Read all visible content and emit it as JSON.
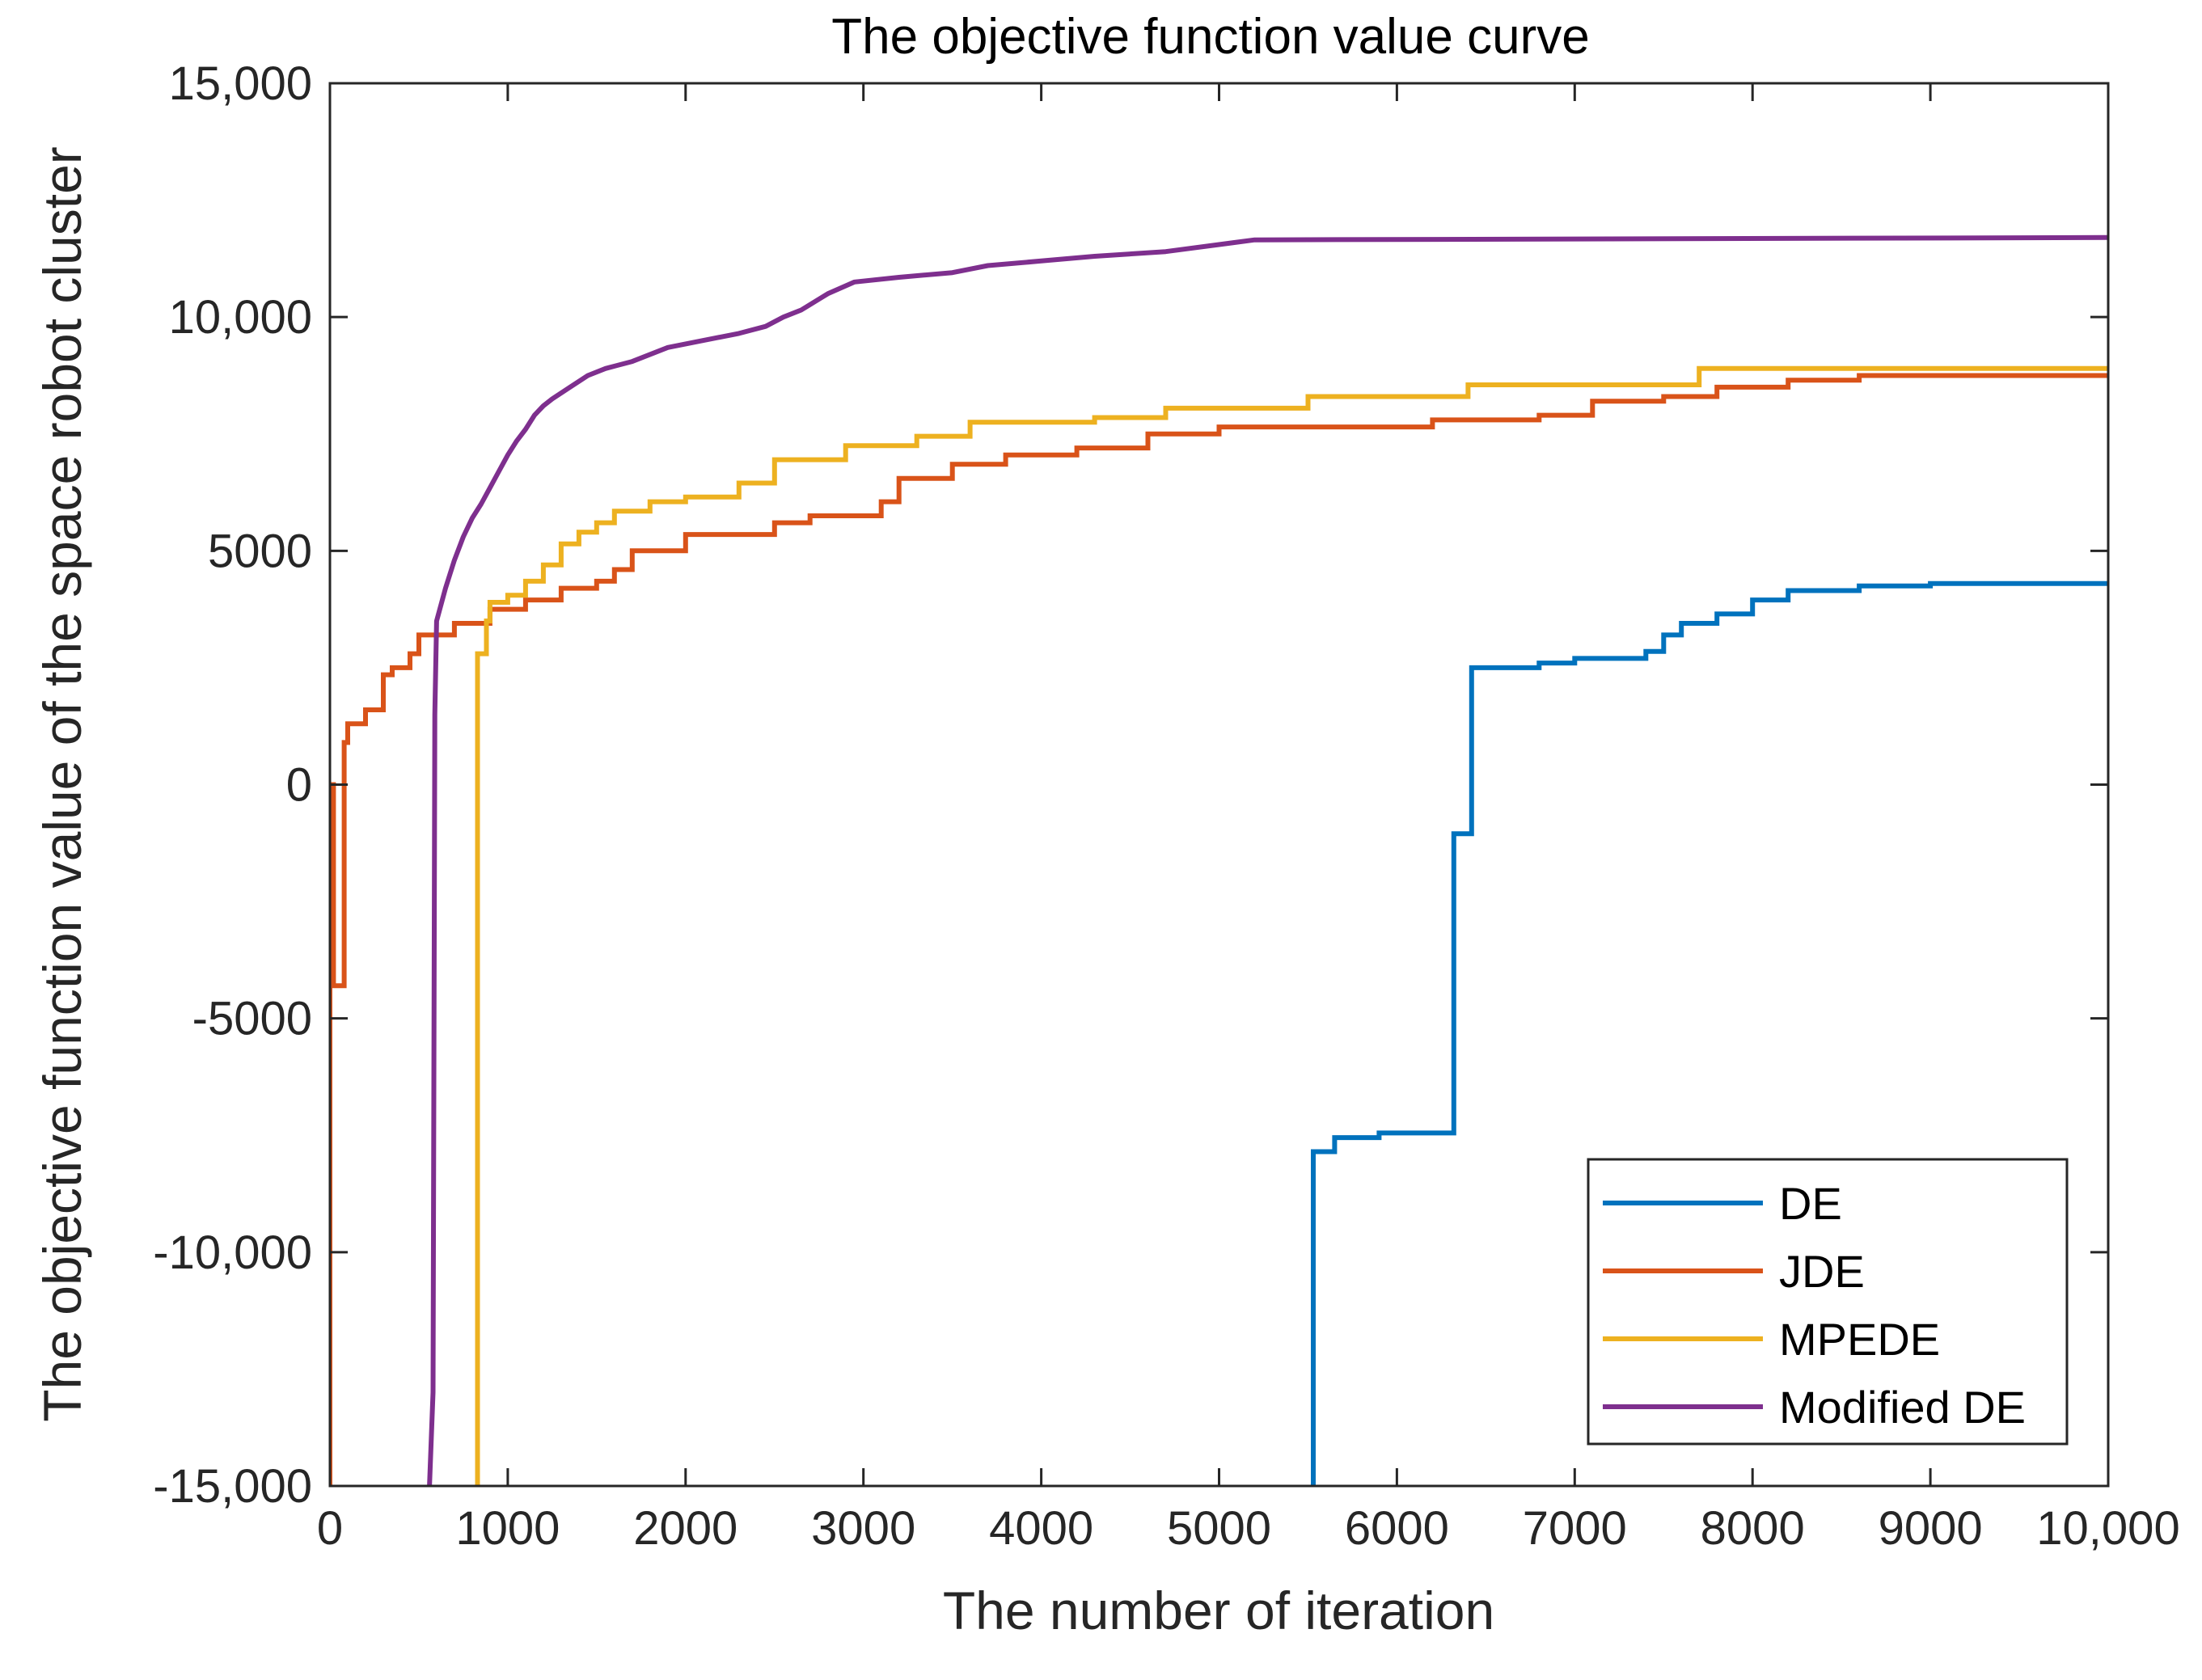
{
  "chart_data": {
    "type": "line",
    "title": "The objective function value curve",
    "xlabel": "The number of iteration",
    "ylabel": "The objective function value of the space robot cluster",
    "xlim": [
      0,
      10000
    ],
    "ylim": [
      -15000,
      15000
    ],
    "xticks": [
      0,
      1000,
      2000,
      3000,
      4000,
      5000,
      6000,
      7000,
      8000,
      9000,
      10000
    ],
    "xtick_labels": [
      "0",
      "1000",
      "2000",
      "3000",
      "4000",
      "5000",
      "6000",
      "7000",
      "8000",
      "9000",
      "10,000"
    ],
    "yticks": [
      15000,
      10000,
      5000,
      0,
      -5000,
      -10000,
      -15000
    ],
    "ytick_labels": [
      "15,000",
      "10,000",
      "5000",
      "0",
      "-5000",
      "-10,000",
      "-15,000"
    ],
    "grid": false,
    "legend_position": "bottom-right",
    "series": [
      {
        "name": "DE",
        "color": "#0072BD",
        "step": true,
        "points": [
          [
            5530,
            -15000
          ],
          [
            5530,
            -7850
          ],
          [
            5650,
            -7850
          ],
          [
            5650,
            -7550
          ],
          [
            5900,
            -7550
          ],
          [
            5900,
            -7450
          ],
          [
            6320,
            -7450
          ],
          [
            6320,
            -1050
          ],
          [
            6420,
            -1050
          ],
          [
            6420,
            2500
          ],
          [
            6800,
            2500
          ],
          [
            6800,
            2600
          ],
          [
            7000,
            2600
          ],
          [
            7000,
            2700
          ],
          [
            7400,
            2700
          ],
          [
            7400,
            2850
          ],
          [
            7500,
            2850
          ],
          [
            7500,
            3200
          ],
          [
            7600,
            3200
          ],
          [
            7600,
            3450
          ],
          [
            7800,
            3450
          ],
          [
            7800,
            3650
          ],
          [
            8000,
            3650
          ],
          [
            8000,
            3950
          ],
          [
            8200,
            3950
          ],
          [
            8200,
            4150
          ],
          [
            8600,
            4150
          ],
          [
            8600,
            4250
          ],
          [
            9000,
            4250
          ],
          [
            9000,
            4300
          ],
          [
            10000,
            4300
          ]
        ]
      },
      {
        "name": "JDE",
        "color": "#D95319",
        "step": true,
        "points": [
          [
            0,
            -15000
          ],
          [
            0,
            0
          ],
          [
            20,
            0
          ],
          [
            20,
            -4300
          ],
          [
            80,
            -4300
          ],
          [
            80,
            900
          ],
          [
            100,
            900
          ],
          [
            100,
            1300
          ],
          [
            200,
            1300
          ],
          [
            200,
            1600
          ],
          [
            300,
            1600
          ],
          [
            300,
            2350
          ],
          [
            350,
            2350
          ],
          [
            350,
            2500
          ],
          [
            450,
            2500
          ],
          [
            450,
            2800
          ],
          [
            500,
            2800
          ],
          [
            500,
            3200
          ],
          [
            700,
            3200
          ],
          [
            700,
            3450
          ],
          [
            900,
            3450
          ],
          [
            900,
            3750
          ],
          [
            1100,
            3750
          ],
          [
            1100,
            3950
          ],
          [
            1300,
            3950
          ],
          [
            1300,
            4200
          ],
          [
            1500,
            4200
          ],
          [
            1500,
            4350
          ],
          [
            1600,
            4350
          ],
          [
            1600,
            4600
          ],
          [
            1700,
            4600
          ],
          [
            1700,
            5000
          ],
          [
            2000,
            5000
          ],
          [
            2000,
            5350
          ],
          [
            2500,
            5350
          ],
          [
            2500,
            5600
          ],
          [
            2700,
            5600
          ],
          [
            2700,
            5750
          ],
          [
            3100,
            5750
          ],
          [
            3100,
            6050
          ],
          [
            3200,
            6050
          ],
          [
            3200,
            6550
          ],
          [
            3500,
            6550
          ],
          [
            3500,
            6850
          ],
          [
            3800,
            6850
          ],
          [
            3800,
            7050
          ],
          [
            4200,
            7050
          ],
          [
            4200,
            7200
          ],
          [
            4600,
            7200
          ],
          [
            4600,
            7500
          ],
          [
            5000,
            7500
          ],
          [
            5000,
            7650
          ],
          [
            6200,
            7650
          ],
          [
            6200,
            7800
          ],
          [
            6800,
            7800
          ],
          [
            6800,
            7900
          ],
          [
            7100,
            7900
          ],
          [
            7100,
            8200
          ],
          [
            7500,
            8200
          ],
          [
            7500,
            8300
          ],
          [
            7800,
            8300
          ],
          [
            7800,
            8500
          ],
          [
            8200,
            8500
          ],
          [
            8200,
            8650
          ],
          [
            8600,
            8650
          ],
          [
            8600,
            8750
          ],
          [
            10000,
            8750
          ]
        ]
      },
      {
        "name": "MPEDE",
        "color": "#EDB120",
        "step": true,
        "points": [
          [
            830,
            -15000
          ],
          [
            830,
            2800
          ],
          [
            880,
            2800
          ],
          [
            880,
            3500
          ],
          [
            900,
            3500
          ],
          [
            900,
            3900
          ],
          [
            1000,
            3900
          ],
          [
            1000,
            4050
          ],
          [
            1100,
            4050
          ],
          [
            1100,
            4350
          ],
          [
            1200,
            4350
          ],
          [
            1200,
            4700
          ],
          [
            1300,
            4700
          ],
          [
            1300,
            5150
          ],
          [
            1400,
            5150
          ],
          [
            1400,
            5400
          ],
          [
            1500,
            5400
          ],
          [
            1500,
            5600
          ],
          [
            1600,
            5600
          ],
          [
            1600,
            5850
          ],
          [
            1800,
            5850
          ],
          [
            1800,
            6050
          ],
          [
            2000,
            6050
          ],
          [
            2000,
            6150
          ],
          [
            2300,
            6150
          ],
          [
            2300,
            6450
          ],
          [
            2500,
            6450
          ],
          [
            2500,
            6950
          ],
          [
            2900,
            6950
          ],
          [
            2900,
            7250
          ],
          [
            3300,
            7250
          ],
          [
            3300,
            7450
          ],
          [
            3600,
            7450
          ],
          [
            3600,
            7750
          ],
          [
            4300,
            7750
          ],
          [
            4300,
            7850
          ],
          [
            4700,
            7850
          ],
          [
            4700,
            8050
          ],
          [
            5500,
            8050
          ],
          [
            5500,
            8300
          ],
          [
            6400,
            8300
          ],
          [
            6400,
            8550
          ],
          [
            7700,
            8550
          ],
          [
            7700,
            8900
          ],
          [
            10000,
            8900
          ]
        ]
      },
      {
        "name": "Modified DE",
        "color": "#7E2F8E",
        "step": false,
        "points": [
          [
            560,
            -15000
          ],
          [
            580,
            -13000
          ],
          [
            590,
            1500
          ],
          [
            600,
            3500
          ],
          [
            650,
            4200
          ],
          [
            700,
            4800
          ],
          [
            750,
            5300
          ],
          [
            800,
            5700
          ],
          [
            850,
            6000
          ],
          [
            900,
            6350
          ],
          [
            950,
            6700
          ],
          [
            1000,
            7050
          ],
          [
            1050,
            7350
          ],
          [
            1100,
            7600
          ],
          [
            1150,
            7900
          ],
          [
            1200,
            8100
          ],
          [
            1250,
            8250
          ],
          [
            1350,
            8500
          ],
          [
            1450,
            8750
          ],
          [
            1550,
            8900
          ],
          [
            1700,
            9050
          ],
          [
            1800,
            9200
          ],
          [
            1900,
            9350
          ],
          [
            2100,
            9500
          ],
          [
            2300,
            9650
          ],
          [
            2450,
            9800
          ],
          [
            2550,
            10000
          ],
          [
            2650,
            10150
          ],
          [
            2800,
            10500
          ],
          [
            2950,
            10750
          ],
          [
            3200,
            10850
          ],
          [
            3500,
            10950
          ],
          [
            3700,
            11100
          ],
          [
            4000,
            11200
          ],
          [
            4300,
            11300
          ],
          [
            4700,
            11400
          ],
          [
            5000,
            11550
          ],
          [
            5200,
            11650
          ],
          [
            10000,
            11700
          ]
        ]
      }
    ]
  }
}
